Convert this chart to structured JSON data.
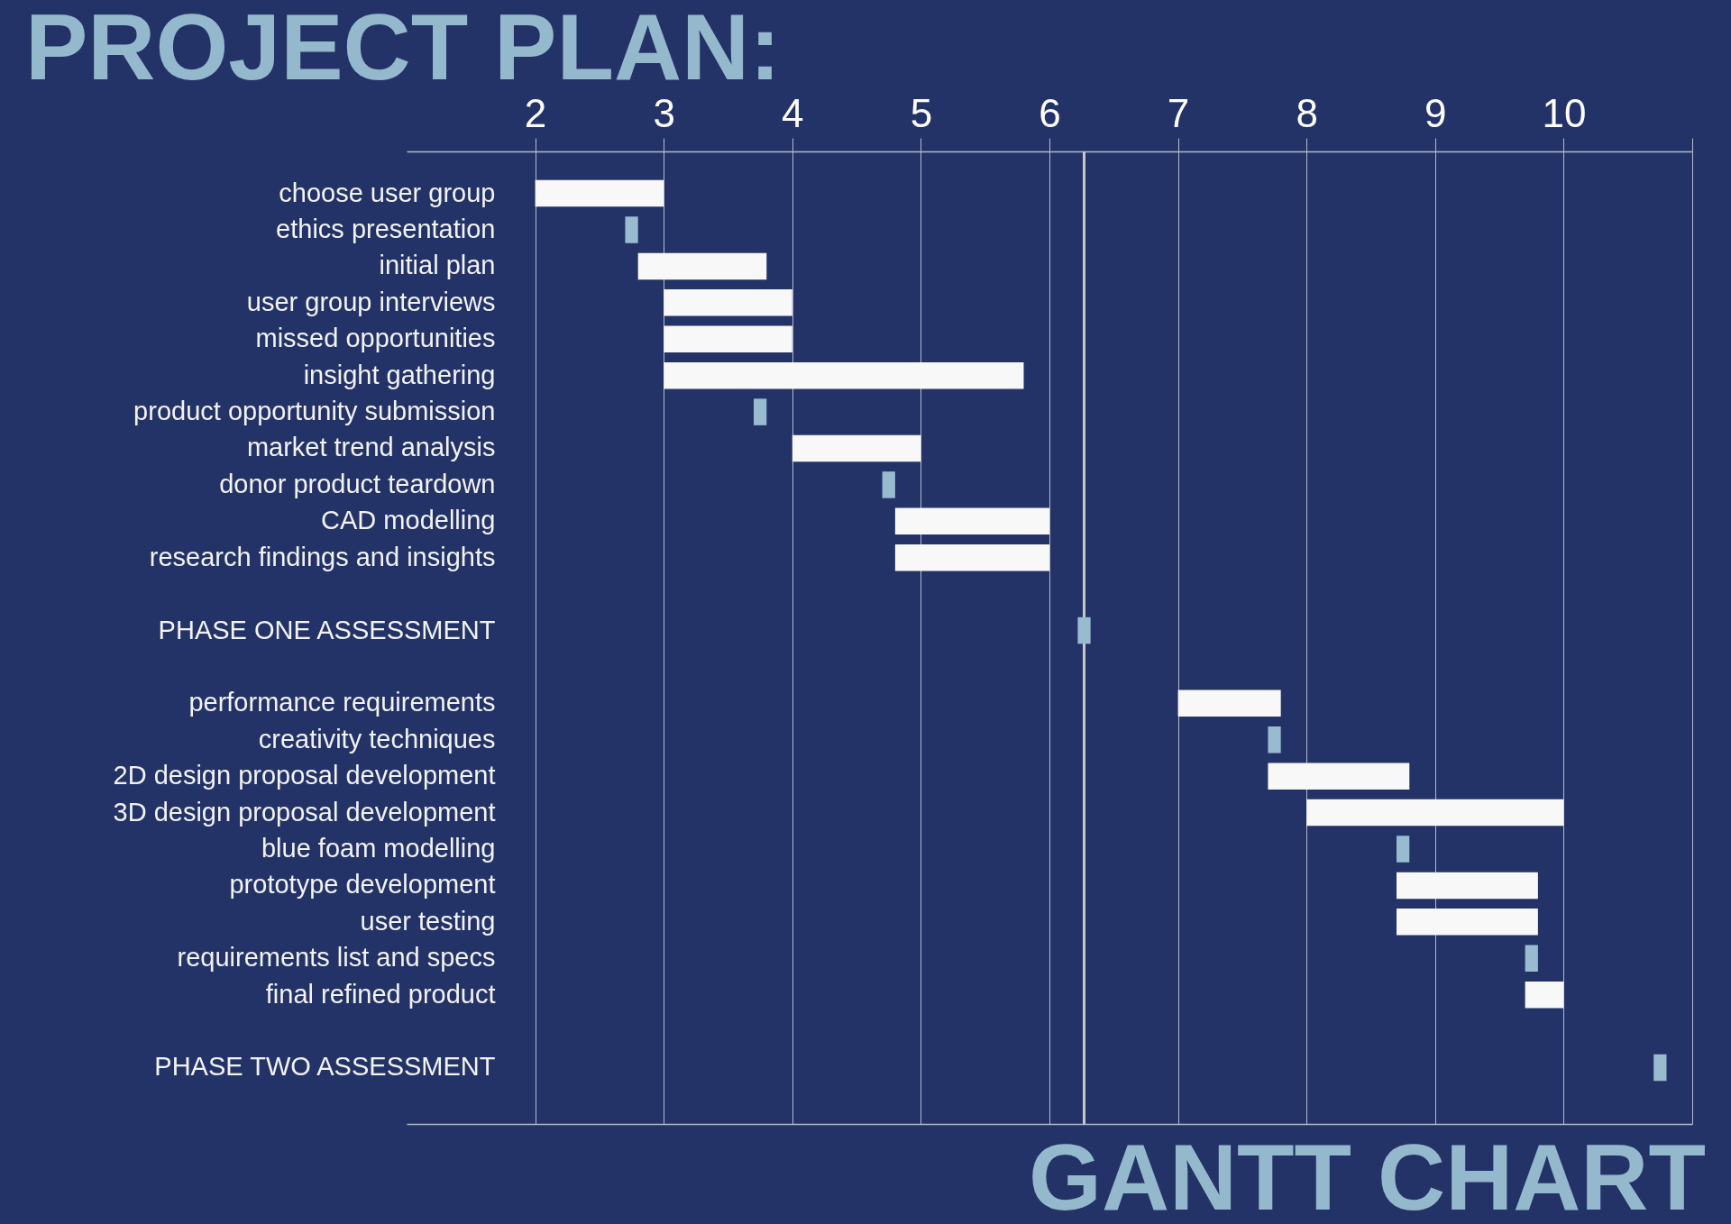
{
  "chart_data": {
    "type": "bar",
    "orientation": "horizontal",
    "title": "PROJECT PLAN:",
    "subtitle": "GANTT CHART",
    "categories": [
      "choose user group",
      "ethics presentation",
      "initial plan",
      "user group interviews",
      "missed opportunities",
      "insight gathering",
      "product opportunity submission",
      "market trend analysis",
      "donor product teardown",
      "CAD modelling",
      "research findings and insights",
      null,
      "PHASE ONE ASSESSMENT",
      null,
      "performance requirements",
      "creativity techniques",
      "2D design proposal development",
      "3D design proposal development",
      "blue foam modelling",
      "prototype development",
      "user testing",
      "requirements list and specs",
      "final refined product",
      null,
      "PHASE TWO ASSESSMENT"
    ],
    "base": [
      2,
      2.7,
      2.8,
      3,
      3,
      3,
      3.7,
      4,
      4.7,
      4.8,
      4.8,
      null,
      6.22,
      null,
      7,
      7.7,
      7.7,
      8,
      8.7,
      8.7,
      8.7,
      9.7,
      9.7,
      null,
      10.7
    ],
    "values": [
      1,
      0.1,
      1,
      1,
      1,
      2.8,
      0.1,
      1,
      0.1,
      1.2,
      1.2,
      null,
      0.1,
      null,
      0.8,
      0.1,
      1.1,
      2,
      0.1,
      1.1,
      1.1,
      0.1,
      0.3,
      null,
      0.1
    ],
    "colors": [
      "#f8f8f8",
      "#98bbcf",
      "#f8f8f8",
      "#f8f8f8",
      "#f8f8f8",
      "#f8f8f8",
      "#98bbcf",
      "#f8f8f8",
      "#98bbcf",
      "#f8f8f8",
      "#f8f8f8",
      null,
      "#98bbcf",
      null,
      "#f8f8f8",
      "#98bbcf",
      "#f8f8f8",
      "#f8f8f8",
      "#98bbcf",
      "#f8f8f8",
      "#f8f8f8",
      "#98bbcf",
      "#f8f8f8",
      null,
      "#98bbcf"
    ],
    "xlim": [
      1,
      11
    ],
    "xticks": [
      2,
      3,
      4,
      5,
      6,
      7,
      8,
      9,
      10,
      {
        "value": 11,
        "label": null
      }
    ],
    "grid": "x",
    "ref_lines": [
      {
        "axis": "x",
        "value": 6.27,
        "color": "#c8c8c8"
      }
    ]
  }
}
